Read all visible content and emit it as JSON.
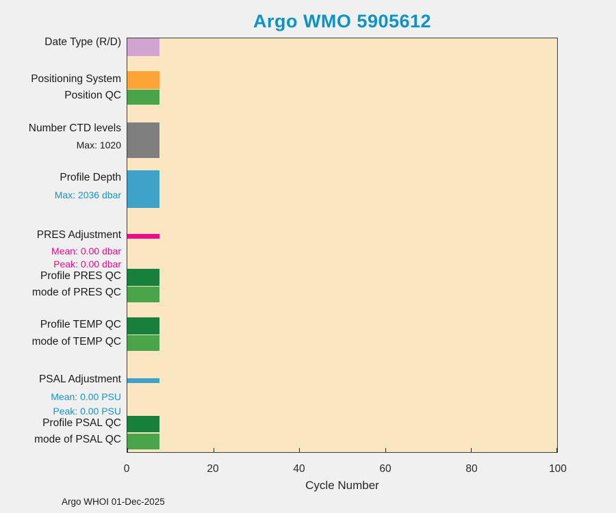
{
  "title": "Argo WMO 5905612",
  "xlabel": "Cycle Number",
  "credit": "Argo WHOI 01-Dec-2025",
  "colors": {
    "title": "#0D94C6",
    "figure_background": "#F0F0F0",
    "plot_background": "#FAE7C2",
    "axis": "#262626",
    "info_blue": "#1596C8",
    "info_magenta": "#EB0D8C"
  },
  "chart_data": {
    "type": "bar",
    "orientation": "horizontal",
    "title": "Argo WMO 5905612",
    "xlabel": "Cycle Number",
    "xlim": [
      0,
      100
    ],
    "x_ticks": [
      0,
      20,
      40,
      60,
      80,
      100
    ],
    "grid": "off",
    "rows": [
      {
        "id": "date-type",
        "label": "Date Type (R/D)",
        "value": 7.5,
        "color": "#D2A4D2",
        "sublabels": []
      },
      {
        "id": "positioning-system",
        "label": "Positioning System",
        "value": 7.5,
        "color": "#FCA436",
        "sublabels": []
      },
      {
        "id": "position-qc",
        "label": "Position QC",
        "value": 7.5,
        "color": "#4AA44A",
        "sublabels": []
      },
      {
        "id": "number-ctd-levels",
        "label": "Number CTD levels",
        "value": 7.5,
        "color": "#7F7F7F",
        "sublabels": [
          {
            "text": "Max: 1020",
            "color": "#1A1A1A"
          }
        ]
      },
      {
        "id": "profile-depth",
        "label": "Profile Depth",
        "value": 7.5,
        "color": "#3FA2C9",
        "sublabels": [
          {
            "text": "Max: 2036 dbar",
            "color": "#1596C8"
          }
        ]
      },
      {
        "id": "pres-adjustment",
        "label": "PRES Adjustment",
        "value": 7.5,
        "color": "#EB0D8C",
        "sublabels": [
          {
            "text": "Mean: 0.00 dbar",
            "color": "#EB0D8C"
          },
          {
            "text": "Peak: 0.00 dbar",
            "color": "#EB0D8C"
          }
        ]
      },
      {
        "id": "profile-pres-qc",
        "label": "Profile PRES QC",
        "value": 7.5,
        "color": "#17803C",
        "sublabels": []
      },
      {
        "id": "mode-of-pres-qc",
        "label": "mode of PRES QC",
        "value": 7.5,
        "color": "#4AA44A",
        "sublabels": []
      },
      {
        "id": "profile-temp-qc",
        "label": "Profile TEMP QC",
        "value": 7.5,
        "color": "#17803C",
        "sublabels": []
      },
      {
        "id": "mode-of-temp-qc",
        "label": "mode of TEMP QC",
        "value": 7.5,
        "color": "#4AA44A",
        "sublabels": []
      },
      {
        "id": "psal-adjustment",
        "label": "PSAL Adjustment",
        "value": 7.5,
        "color": "#3FA2C9",
        "sublabels": [
          {
            "text": "Mean: 0.00 PSU",
            "color": "#1596C8"
          },
          {
            "text": "Peak: 0.00 PSU",
            "color": "#1596C8"
          }
        ]
      },
      {
        "id": "profile-psal-qc",
        "label": "Profile PSAL QC",
        "value": 7.5,
        "color": "#17803C",
        "sublabels": []
      },
      {
        "id": "mode-of-psal-qc",
        "label": "mode of PSAL QC",
        "value": 7.5,
        "color": "#4AA44A",
        "sublabels": []
      }
    ]
  }
}
